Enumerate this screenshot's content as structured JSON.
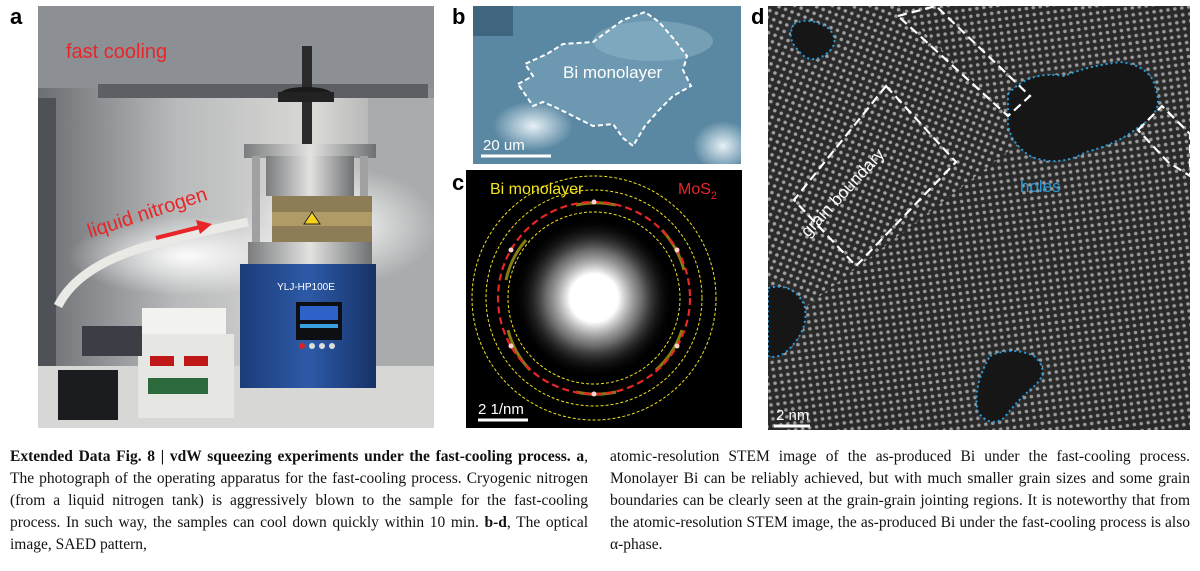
{
  "panels": {
    "a": {
      "letter": "a",
      "fast_cooling": "fast cooling",
      "liquid_nitrogen": "liquid nitrogen",
      "device_label": "YLJ-HP100E"
    },
    "b": {
      "letter": "b",
      "region_label": "Bi monolayer",
      "scale_bar": "20 um"
    },
    "c": {
      "letter": "c",
      "legend_bi": "Bi monolayer",
      "legend_mos2_main": "MoS",
      "legend_mos2_sub": "2",
      "scale_bar": "2 1/nm"
    },
    "d": {
      "letter": "d",
      "grain_boundary": "grain boundary",
      "holes": "holes",
      "scale_bar": "2 nm"
    }
  },
  "caption": {
    "figure_label": "Extended Data Fig. 8 | vdW squeezing experiments under the fast-cooling process.",
    "a_label": "a",
    "a_text": ", The photograph of the operating apparatus for the fast-cooling process. Cryogenic nitrogen (from a liquid nitrogen tank) is aggressively blown to the sample for the fast-cooling process. In such way, the samples can cool down quickly within 10 min.",
    "bd_label": "b-d",
    "bd_text_left": ", The optical image, SAED pattern,",
    "right_text": "atomic-resolution STEM image of the as-produced Bi under the fast-cooling process. Monolayer Bi can be reliably achieved, but with much smaller grain sizes and some grain boundaries can be clearly seen at the grain-grain jointing regions. It is noteworthy that from the atomic-resolution STEM image, the as-produced Bi under the fast-cooling process is also α-phase."
  },
  "colors": {
    "red_label": "#e8262a",
    "yellow_label": "#f2e31b",
    "hole_outline": "#2a9bd8",
    "optical_bg": "#4f7f9a"
  }
}
